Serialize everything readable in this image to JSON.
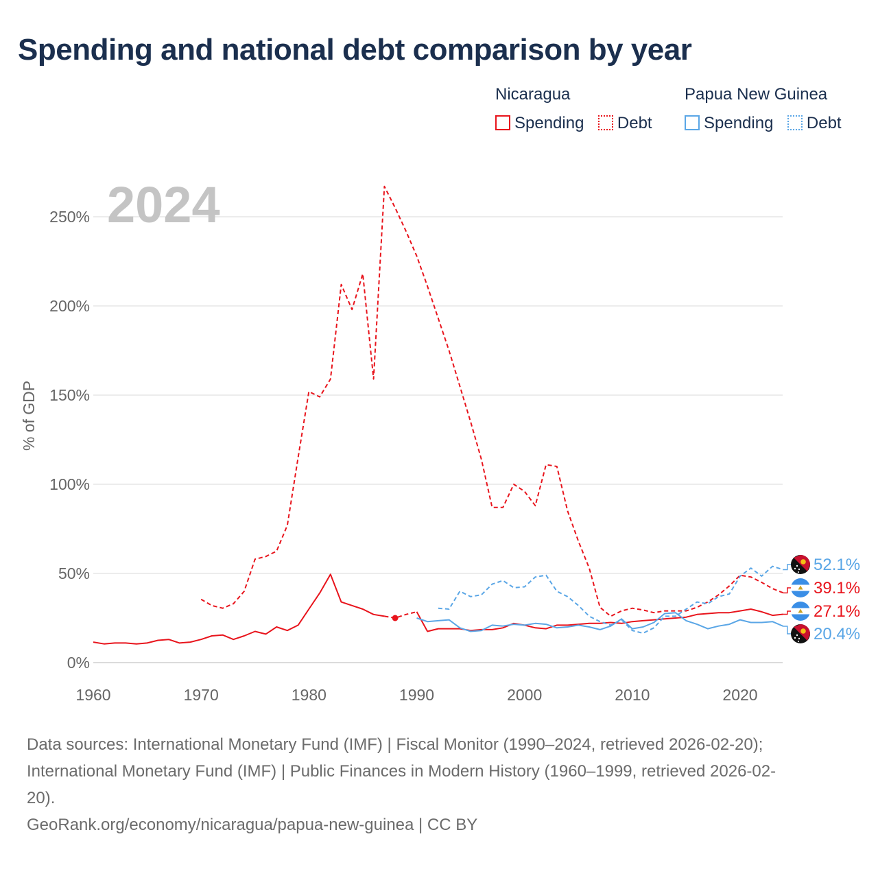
{
  "title": "Spending and national debt comparison by year",
  "legend": {
    "groups": [
      {
        "name": "Nicaragua",
        "color": "#e8141c",
        "items": [
          {
            "label": "Spending",
            "style": "solid"
          },
          {
            "label": "Debt",
            "style": "dotted"
          }
        ]
      },
      {
        "name": "Papua New Guinea",
        "color": "#5aa6e6",
        "items": [
          {
            "label": "Spending",
            "style": "solid"
          },
          {
            "label": "Debt",
            "style": "dotted"
          }
        ]
      }
    ]
  },
  "chart_data": {
    "type": "line",
    "title": "Spending and national debt comparison by year",
    "year_label": "2024",
    "ylabel": "% of GDP",
    "xlabel": "",
    "xlim": [
      1960,
      2024
    ],
    "ylim": [
      0,
      270
    ],
    "xticks": [
      1960,
      1970,
      1980,
      1990,
      2000,
      2010,
      2020
    ],
    "xtick_labels": [
      "1960",
      "1970",
      "1980",
      "1990",
      "2000",
      "2010",
      "2020"
    ],
    "yticks": [
      0,
      50,
      100,
      150,
      200,
      250
    ],
    "ytick_labels": [
      "0%",
      "50%",
      "100%",
      "150%",
      "200%",
      "250%"
    ],
    "grid": true,
    "series": [
      {
        "name": "Nicaragua Debt",
        "color": "#e8141c",
        "style": "dashed",
        "points": [
          [
            1970,
            35.5
          ],
          [
            1971,
            32
          ],
          [
            1972,
            30.5
          ],
          [
            1973,
            33
          ],
          [
            1974,
            40
          ],
          [
            1975,
            58
          ],
          [
            1976,
            59.5
          ],
          [
            1977,
            62.5
          ],
          [
            1978,
            77
          ],
          [
            1979,
            115
          ],
          [
            1980,
            152
          ],
          [
            1981,
            149
          ],
          [
            1982,
            159
          ],
          [
            1983,
            212
          ],
          [
            1984,
            198
          ],
          [
            1985,
            218
          ],
          [
            1986,
            159
          ],
          [
            1987,
            267
          ],
          [
            1988,
            255
          ],
          [
            1989,
            242
          ],
          [
            1990,
            228
          ],
          [
            1991,
            211
          ],
          [
            1992,
            193
          ],
          [
            1993,
            175
          ],
          [
            1994,
            155
          ],
          [
            1995,
            135
          ],
          [
            1996,
            114
          ],
          [
            1997,
            87
          ],
          [
            1998,
            87
          ],
          [
            1999,
            100
          ],
          [
            2000,
            96
          ],
          [
            2001,
            88
          ],
          [
            2002,
            111
          ],
          [
            2003,
            110
          ],
          [
            2004,
            85
          ],
          [
            2005,
            68
          ],
          [
            2006,
            53
          ],
          [
            2007,
            31
          ],
          [
            2008,
            26
          ],
          [
            2009,
            29
          ],
          [
            2010,
            30.5
          ],
          [
            2011,
            29.5
          ],
          [
            2012,
            28
          ],
          [
            2013,
            29
          ],
          [
            2014,
            29
          ],
          [
            2015,
            29
          ],
          [
            2016,
            31
          ],
          [
            2017,
            34
          ],
          [
            2018,
            38
          ],
          [
            2019,
            43
          ],
          [
            2020,
            49
          ],
          [
            2021,
            48
          ],
          [
            2022,
            45
          ],
          [
            2023,
            41.5
          ],
          [
            2024,
            39.1
          ]
        ]
      },
      {
        "name": "Nicaragua Spending",
        "color": "#e8141c",
        "style": "solid",
        "points": [
          [
            1960,
            11.5
          ],
          [
            1961,
            10.5
          ],
          [
            1962,
            11
          ],
          [
            1963,
            11
          ],
          [
            1964,
            10.5
          ],
          [
            1965,
            11
          ],
          [
            1966,
            12.5
          ],
          [
            1967,
            13
          ],
          [
            1968,
            11
          ],
          [
            1969,
            11.5
          ],
          [
            1970,
            13
          ],
          [
            1971,
            15
          ],
          [
            1972,
            15.5
          ],
          [
            1973,
            13
          ],
          [
            1974,
            15
          ],
          [
            1975,
            17.5
          ],
          [
            1976,
            16
          ],
          [
            1977,
            20
          ],
          [
            1978,
            18
          ],
          [
            1979,
            21
          ],
          [
            1980,
            30
          ],
          [
            1981,
            39
          ],
          [
            1982,
            49.5
          ],
          [
            1983,
            34
          ],
          [
            1984,
            32
          ],
          [
            1985,
            30
          ],
          [
            1986,
            27
          ],
          [
            1987,
            26
          ]
        ]
      },
      {
        "name": "Nicaragua Spending (gap)",
        "color": "#e8141c",
        "style": "dashed",
        "points": [
          [
            1987,
            26
          ],
          [
            1988,
            25
          ],
          [
            1989,
            27
          ],
          [
            1990,
            28.5
          ]
        ]
      },
      {
        "name": "Nicaragua Spending (Fiscal Monitor)",
        "color": "#e8141c",
        "style": "solid",
        "points": [
          [
            1990,
            28.5
          ],
          [
            1991,
            17.5
          ],
          [
            1992,
            19
          ],
          [
            1993,
            19
          ],
          [
            1994,
            19
          ],
          [
            1995,
            18
          ],
          [
            1996,
            18.5
          ],
          [
            1997,
            18.5
          ],
          [
            1998,
            19.5
          ],
          [
            1999,
            22
          ],
          [
            2000,
            21
          ],
          [
            2001,
            19.5
          ],
          [
            2002,
            19
          ],
          [
            2003,
            21
          ],
          [
            2004,
            21
          ],
          [
            2005,
            21.5
          ],
          [
            2006,
            22
          ],
          [
            2007,
            22
          ],
          [
            2008,
            22.5
          ],
          [
            2009,
            22
          ],
          [
            2010,
            23
          ],
          [
            2011,
            23.5
          ],
          [
            2012,
            24
          ],
          [
            2013,
            24.5
          ],
          [
            2014,
            25
          ],
          [
            2015,
            25.5
          ],
          [
            2016,
            27
          ],
          [
            2017,
            27.5
          ],
          [
            2018,
            28
          ],
          [
            2019,
            28
          ],
          [
            2020,
            29
          ],
          [
            2021,
            30
          ],
          [
            2022,
            28.5
          ],
          [
            2023,
            26.5
          ],
          [
            2024,
            27.1
          ]
        ]
      },
      {
        "name": "Papua New Guinea Debt",
        "color": "#5aa6e6",
        "style": "dashed",
        "points": [
          [
            1992,
            30.5
          ],
          [
            1993,
            30
          ],
          [
            1994,
            40
          ],
          [
            1995,
            37
          ],
          [
            1996,
            38
          ],
          [
            1997,
            44
          ],
          [
            1998,
            46
          ],
          [
            1999,
            42
          ],
          [
            2000,
            42.5
          ],
          [
            2001,
            48
          ],
          [
            2002,
            49
          ],
          [
            2003,
            40
          ],
          [
            2004,
            37
          ],
          [
            2005,
            32
          ],
          [
            2006,
            26
          ],
          [
            2007,
            23
          ],
          [
            2008,
            21
          ],
          [
            2009,
            24
          ],
          [
            2010,
            18
          ],
          [
            2011,
            16.5
          ],
          [
            2012,
            19.5
          ],
          [
            2013,
            26
          ],
          [
            2014,
            26
          ],
          [
            2015,
            30
          ],
          [
            2016,
            34
          ],
          [
            2017,
            33
          ],
          [
            2018,
            37
          ],
          [
            2019,
            38.5
          ],
          [
            2020,
            48.5
          ],
          [
            2021,
            53
          ],
          [
            2022,
            48.5
          ],
          [
            2023,
            54
          ],
          [
            2024,
            52.1
          ]
        ]
      },
      {
        "name": "Papua New Guinea Spending",
        "color": "#5aa6e6",
        "style": "solid",
        "points": [
          [
            1990,
            25
          ],
          [
            1991,
            23
          ],
          [
            1992,
            23.5
          ],
          [
            1993,
            24
          ],
          [
            1994,
            19.5
          ],
          [
            1995,
            17.5
          ],
          [
            1996,
            18
          ],
          [
            1997,
            21
          ],
          [
            1998,
            20.5
          ],
          [
            1999,
            21.5
          ],
          [
            2000,
            21
          ],
          [
            2001,
            22
          ],
          [
            2002,
            21.5
          ],
          [
            2003,
            19.5
          ],
          [
            2004,
            20
          ],
          [
            2005,
            21
          ],
          [
            2006,
            20
          ],
          [
            2007,
            18.5
          ],
          [
            2008,
            20.5
          ],
          [
            2009,
            24.5
          ],
          [
            2010,
            19
          ],
          [
            2011,
            20
          ],
          [
            2012,
            22.5
          ],
          [
            2013,
            27.5
          ],
          [
            2014,
            28
          ],
          [
            2015,
            23.5
          ],
          [
            2016,
            21.5
          ],
          [
            2017,
            19
          ],
          [
            2018,
            20.5
          ],
          [
            2019,
            21.5
          ],
          [
            2020,
            24
          ],
          [
            2021,
            22.5
          ],
          [
            2022,
            22.5
          ],
          [
            2023,
            23
          ],
          [
            2024,
            20.4
          ]
        ]
      }
    ],
    "gap_marker": {
      "year": 1988,
      "value": 25
    },
    "end_labels": [
      {
        "text": "52.1%",
        "value": 52.1,
        "color": "#5aa6e6",
        "flag": "papua-new-guinea"
      },
      {
        "text": "39.1%",
        "value": 39.1,
        "color": "#e8141c",
        "flag": "nicaragua"
      },
      {
        "text": "27.1%",
        "value": 27.1,
        "color": "#e8141c",
        "flag": "nicaragua"
      },
      {
        "text": "20.4%",
        "value": 20.4,
        "color": "#5aa6e6",
        "flag": "papua-new-guinea"
      }
    ]
  },
  "footer": {
    "line1": "Data sources: International Monetary Fund (IMF) | Fiscal Monitor (1990–2024, retrieved 2026-02-20);",
    "line2": "International Monetary Fund (IMF) | Public Finances in Modern History (1960–1999, retrieved 2026-02-",
    "line3": "20).",
    "line4": "GeoRank.org/economy/nicaragua/papua-new-guinea | CC BY"
  }
}
